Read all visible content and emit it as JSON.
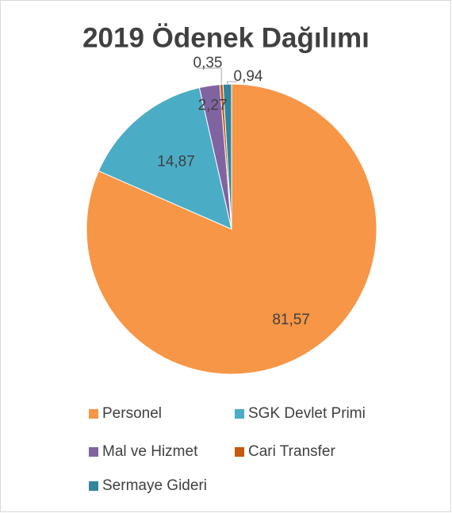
{
  "chart_data": {
    "type": "pie",
    "title": "2019 Ödenek Dağılımı",
    "categories": [
      "Personel",
      "SGK Devlet Primi",
      "Mal ve Hizmet",
      "Cari Transfer",
      "Sermaye Gideri"
    ],
    "values": [
      81.57,
      14.87,
      2.27,
      0.35,
      0.94
    ],
    "value_labels": [
      "81,57",
      "14,87",
      "2,27",
      "0,35",
      "0,94"
    ],
    "colors": [
      "#f79646",
      "#4bacc6",
      "#8064a2",
      "#c55a11",
      "#31859c"
    ]
  }
}
